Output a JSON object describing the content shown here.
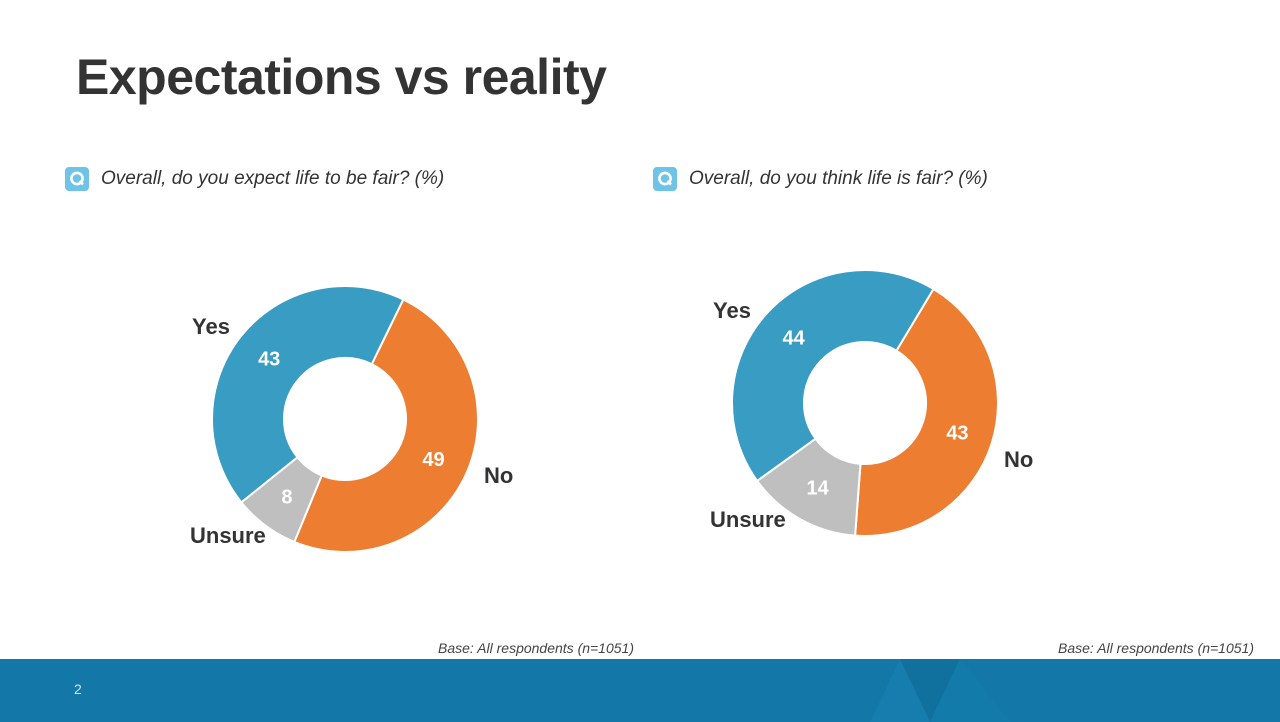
{
  "title": "Expectations vs reality",
  "colors": {
    "yes": "#399cc2",
    "no": "#ed7d31",
    "unsure": "#bfbfbf",
    "footer": "#1378a8",
    "icon": "#6ec3e6"
  },
  "chart_data": [
    {
      "type": "pie",
      "title": "Overall, do you expect life to be fair? (%)",
      "base_note": "Base: All respondents (n=1051)",
      "labels": [
        "No",
        "Unsure",
        "Yes"
      ],
      "values": [
        49,
        8,
        43
      ],
      "legend": "labels around chart"
    },
    {
      "type": "pie",
      "title": "Overall, do you think life is fair? (%)",
      "base_note": "Base: All respondents (n=1051)",
      "labels": [
        "No",
        "Unsure",
        "Yes"
      ],
      "values": [
        43,
        14,
        44
      ],
      "legend": "labels around chart"
    }
  ],
  "footer": {
    "page_number": "2"
  }
}
